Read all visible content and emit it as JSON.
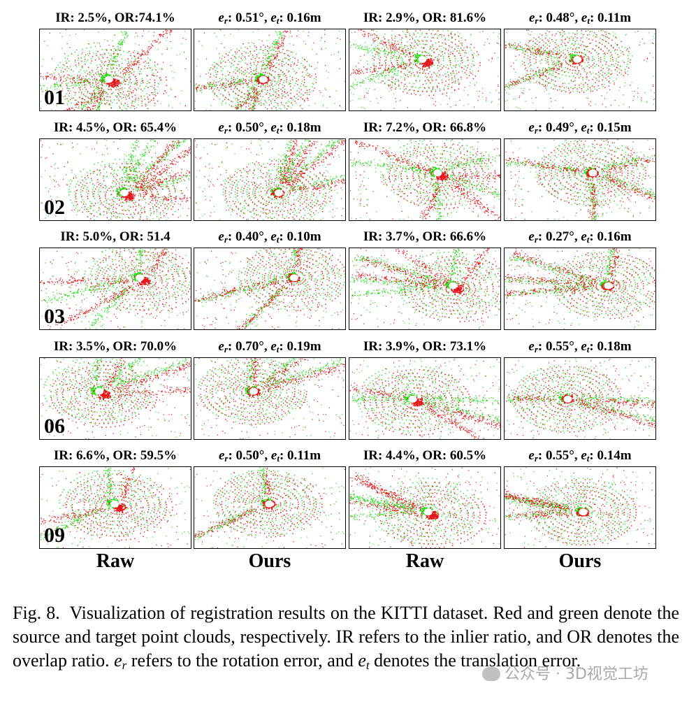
{
  "figure": {
    "rows": [
      {
        "sequence": "01",
        "cells": [
          {
            "kind": "ratio",
            "ir": "IR: 2.5%",
            "or": "OR:74.1%"
          },
          {
            "kind": "error",
            "er": "0.51°",
            "et": "0.16m"
          },
          {
            "kind": "ratio",
            "ir": "IR: 2.9%",
            "or": "OR: 81.6%"
          },
          {
            "kind": "error",
            "er": "0.48°",
            "et": "0.11m"
          }
        ]
      },
      {
        "sequence": "02",
        "cells": [
          {
            "kind": "ratio",
            "ir": "IR: 4.5%",
            "or": "OR: 65.4%"
          },
          {
            "kind": "error",
            "er": "0.50°",
            "et": "0.18m"
          },
          {
            "kind": "ratio",
            "ir": "IR: 7.2%",
            "or": "OR: 66.8%"
          },
          {
            "kind": "error",
            "er": "0.49°",
            "et": "0.15m"
          }
        ]
      },
      {
        "sequence": "03",
        "cells": [
          {
            "kind": "ratio",
            "ir": "IR: 5.0%",
            "or": "OR: 51.4"
          },
          {
            "kind": "error",
            "er": "0.40°",
            "et": "0.10m"
          },
          {
            "kind": "ratio",
            "ir": "IR: 3.7%",
            "or": "OR: 66.6%"
          },
          {
            "kind": "error",
            "er": "0.27°",
            "et": "0.16m"
          }
        ]
      },
      {
        "sequence": "06",
        "cells": [
          {
            "kind": "ratio",
            "ir": "IR: 3.5%",
            "or": "OR: 70.0%"
          },
          {
            "kind": "error",
            "er": "0.70°",
            "et": "0.19m"
          },
          {
            "kind": "ratio",
            "ir": "IR: 3.9%",
            "or": "OR: 73.1%"
          },
          {
            "kind": "error",
            "er": "0.55°",
            "et": "0.18m"
          }
        ]
      },
      {
        "sequence": "09",
        "cells": [
          {
            "kind": "ratio",
            "ir": "IR: 6.6%",
            "or": "OR: 59.5%"
          },
          {
            "kind": "error",
            "er": "0.50°",
            "et": "0.11m"
          },
          {
            "kind": "ratio",
            "ir": "IR: 4.4%",
            "or": "OR: 60.5%"
          },
          {
            "kind": "error",
            "er": "0.55°",
            "et": "0.14m"
          }
        ]
      }
    ],
    "column_headers": [
      "Raw",
      "Ours",
      "Raw",
      "Ours"
    ],
    "error_labels": {
      "e": "e",
      "r": "r",
      "t": "t"
    },
    "colors": {
      "source": "#e8141c",
      "target": "#22e01a",
      "border": "#000000"
    }
  },
  "caption": {
    "label": "Fig. 8.",
    "sentence1": "Visualization of registration results on the KITTI dataset. Red and green denote the source and target point clouds, respectively. IR refers to the inlier ratio, and OR denotes the overlap ratio.",
    "er_text": "refers to the rotation error, and",
    "et_text": "denotes the translation error."
  },
  "watermark": {
    "text": "公众号 · 3D视觉工坊"
  }
}
